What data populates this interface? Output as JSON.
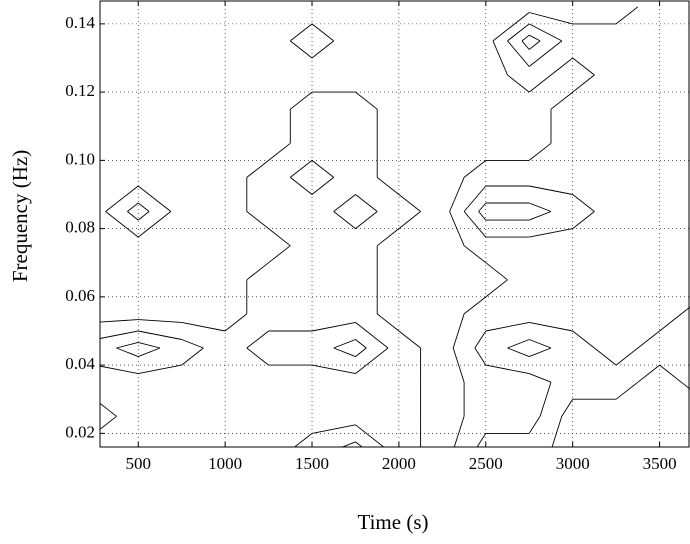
{
  "chart_data": {
    "type": "contour",
    "x_label": "Time (s)",
    "y_label": "Frequency (Hz)",
    "xlim": [
      280,
      3675
    ],
    "ylim": [
      0.016,
      0.1467
    ],
    "xticks": [
      500,
      1000,
      1500,
      2000,
      2500,
      3000,
      3500
    ],
    "yticks": [
      0.02,
      0.04,
      0.06,
      0.08,
      {
        "value": 0.1,
        "label": "0.10"
      },
      0.12,
      0.14
    ],
    "grid": true,
    "color": "#000000",
    "levels": [
      0.5,
      1.5,
      2.5
    ],
    "x": [
      250,
      500,
      750,
      1000,
      1250,
      1500,
      1750,
      2000,
      2250,
      2500,
      2750,
      3000,
      3250,
      3500,
      3750
    ],
    "y": [
      0.015,
      0.025,
      0.035,
      0.045,
      0.055,
      0.065,
      0.075,
      0.085,
      0.095,
      0.105,
      0.115,
      0.125,
      0.135,
      0.145
    ],
    "z": [
      [
        1,
        1,
        1,
        1,
        1,
        2,
        3,
        1,
        0,
        2,
        2,
        3,
        3,
        3,
        3
      ],
      [
        0,
        1,
        1,
        1,
        1,
        1,
        1,
        1,
        0,
        1,
        1,
        3,
        3,
        3,
        3
      ],
      [
        1,
        1,
        1,
        1,
        1,
        1,
        1,
        1,
        0,
        1,
        1,
        2,
        2,
        3,
        2
      ],
      [
        2,
        3,
        2,
        1,
        2,
        2,
        3,
        1,
        0,
        2,
        3,
        2,
        1,
        2,
        2
      ],
      [
        0,
        0,
        0,
        0,
        1,
        1,
        1,
        0,
        0,
        1,
        1,
        1,
        1,
        1,
        2
      ],
      [
        0,
        0,
        0,
        0,
        1,
        1,
        1,
        0,
        0,
        0,
        1,
        1,
        1,
        1,
        1
      ],
      [
        0,
        0,
        0,
        0,
        0,
        1,
        1,
        0,
        0,
        1,
        1,
        1,
        1,
        1,
        1
      ],
      [
        0,
        2,
        0,
        0,
        1,
        1,
        2,
        1,
        0,
        3,
        3,
        2,
        1,
        1,
        1
      ],
      [
        0,
        0,
        0,
        0,
        1,
        2,
        1,
        0,
        0,
        1,
        1,
        1,
        1,
        1,
        1
      ],
      [
        0,
        0,
        0,
        0,
        0,
        1,
        1,
        0,
        0,
        0,
        0,
        1,
        1,
        1,
        1
      ],
      [
        0,
        0,
        0,
        0,
        0,
        1,
        1,
        0,
        0,
        0,
        0,
        1,
        1,
        1,
        1
      ],
      [
        0,
        0,
        0,
        0,
        0,
        0,
        0,
        0,
        0,
        0,
        1,
        0,
        1,
        1,
        1
      ],
      [
        0,
        0,
        0,
        0,
        0,
        1,
        0,
        0,
        0,
        0,
        3,
        1,
        1,
        1,
        1
      ],
      [
        0,
        0,
        0,
        0,
        0,
        0,
        0,
        0,
        0,
        0,
        0,
        0,
        0,
        1,
        1
      ]
    ]
  }
}
